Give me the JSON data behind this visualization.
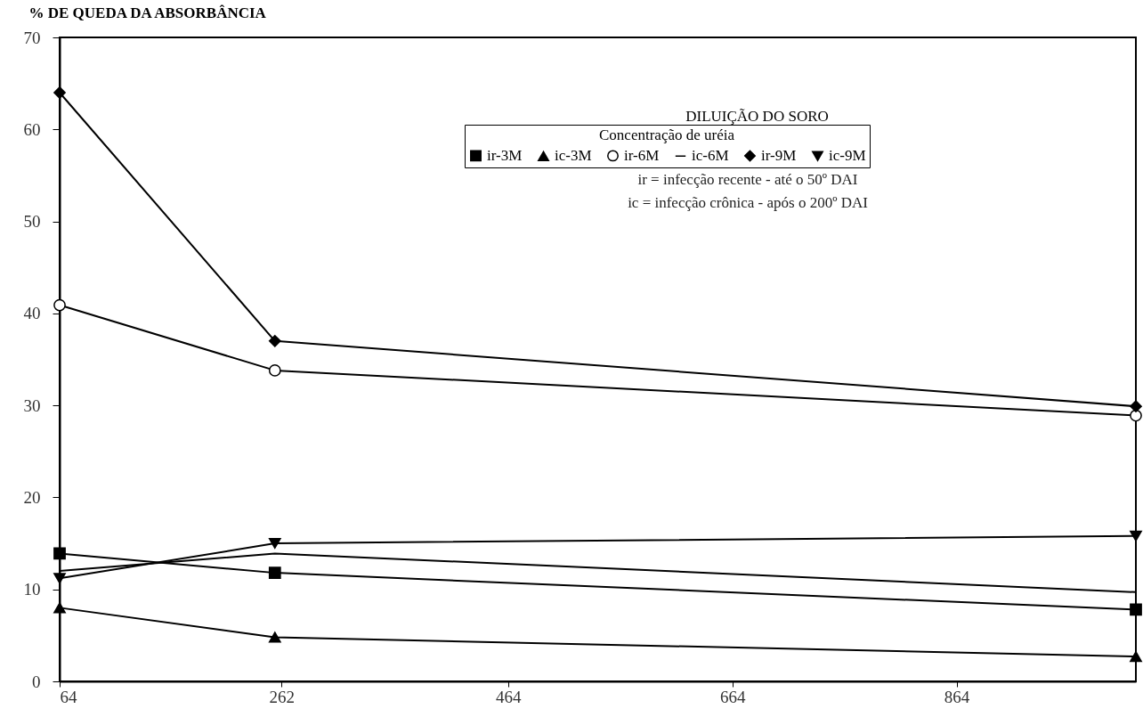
{
  "chart_data": {
    "type": "line",
    "ylabel": "% DE QUEDA DA ABSORBÂNCIA",
    "xlabel": "DILUIÇÃO DO SORO",
    "legend_title": "Concentração de uréia",
    "legend": "top right",
    "grid": false,
    "line_style": "solid",
    "x": [
      64,
      256,
      1024
    ],
    "xlim": [
      64,
      1024
    ],
    "xticks": [
      64,
      262,
      464,
      664,
      864
    ],
    "ylim": [
      0,
      70
    ],
    "yticks": [
      0,
      10,
      20,
      30,
      40,
      50,
      60,
      70
    ],
    "series": [
      {
        "name": "ir-3M",
        "color": "#000000",
        "marker": "square",
        "values": [
          13.9,
          11.8,
          7.8
        ]
      },
      {
        "name": "ic-3M",
        "color": "#000000",
        "marker": "triangle",
        "values": [
          8.0,
          4.8,
          2.7
        ]
      },
      {
        "name": "ir-6M",
        "color": "#000000",
        "marker": "circle",
        "values": [
          40.9,
          33.8,
          28.9
        ]
      },
      {
        "name": "ic-6M",
        "color": "#000000",
        "marker": "none",
        "values": [
          12.0,
          13.9,
          9.7
        ]
      },
      {
        "name": "ir-9M",
        "color": "#000000",
        "marker": "diamond",
        "values": [
          64.0,
          37.0,
          29.9
        ]
      },
      {
        "name": "ic-9M",
        "color": "#000000",
        "marker": "triangle-down",
        "values": [
          11.2,
          15.0,
          15.8
        ]
      }
    ],
    "annotations": [
      "ir = infecção recente - até o 50º DAI",
      "ic = infecção crônica - após o 200º DAI"
    ]
  }
}
